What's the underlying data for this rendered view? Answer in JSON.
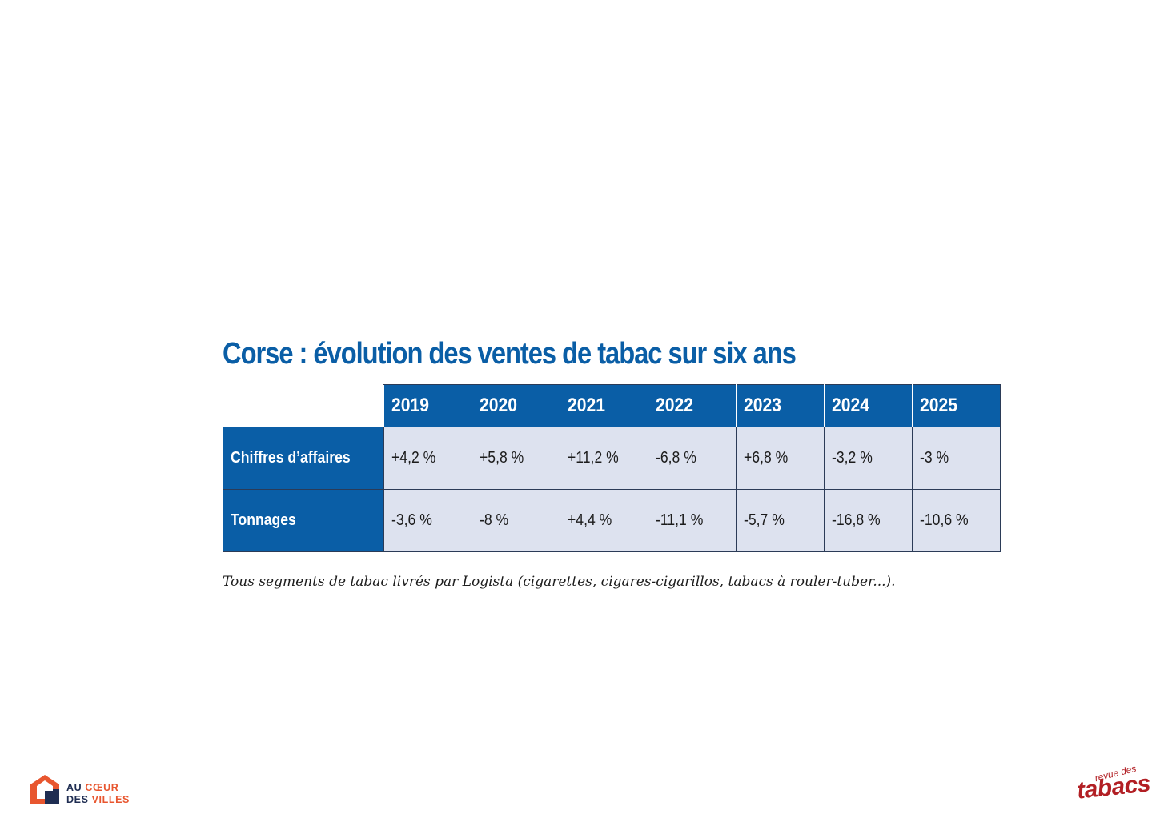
{
  "title": "Corse : évolution des ventes de tabac sur six ans",
  "table": {
    "years": [
      "2019",
      "2020",
      "2021",
      "2022",
      "2023",
      "2024",
      "2025"
    ],
    "rows": [
      {
        "label": "Chiffres d’affaires",
        "values": [
          "+4,2 %",
          "+5,8 %",
          "+11,2 %",
          "-6,8 %",
          "+6,8 %",
          "-3,2 %",
          "-3 %"
        ]
      },
      {
        "label": "Tonnages",
        "values": [
          "-3,6 %",
          "-8 %",
          "+4,4 %",
          "-11,1 %",
          "-5,7 %",
          "-16,8 %",
          "-10,6 %"
        ]
      }
    ]
  },
  "note": "Tous segments de tabac livrés par Logista (cigarettes, cigares-cigarillos, tabacs à rouler-tuber...).",
  "logo_left": {
    "line1_a": "AU",
    "line1_b": "CŒUR",
    "line2_a": "DES",
    "line2_b": "VILLES"
  },
  "logo_right": {
    "small": "revue des",
    "big": "tabacs"
  },
  "colors": {
    "accent": "#0a5ea6",
    "cell_bg": "#dde2ef",
    "brand_red": "#b21f24",
    "brand_orange": "#e8562f",
    "brand_navy": "#1f2d52"
  }
}
